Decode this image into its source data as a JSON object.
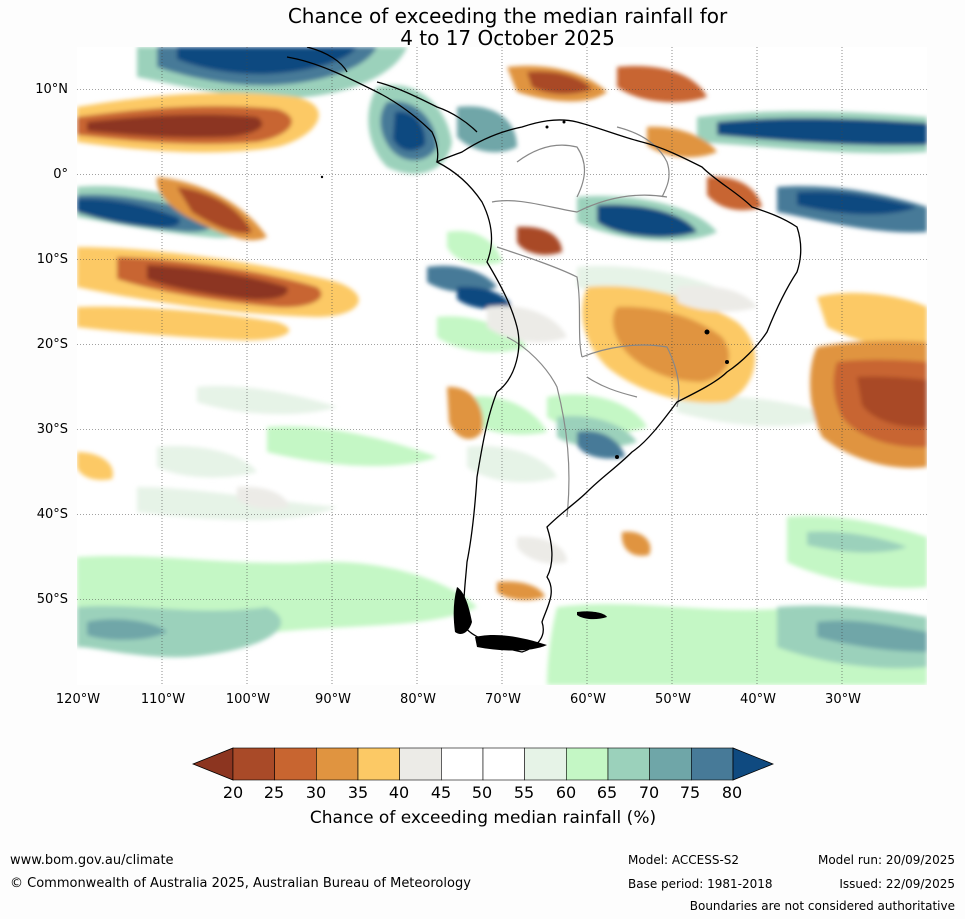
{
  "title": {
    "line1": "Chance of exceeding the median rainfall for",
    "line2": "4 to 17 October 2025"
  },
  "map": {
    "lat_labels": [
      "10°N",
      "0°",
      "10°S",
      "20°S",
      "30°S",
      "40°S",
      "50°S"
    ],
    "lon_labels": [
      "120°W",
      "110°W",
      "100°W",
      "90°W",
      "80°W",
      "70°W",
      "60°W",
      "50°W",
      "40°W",
      "30°W"
    ],
    "extent": {
      "lon_min": -120,
      "lon_max": -20,
      "lat_min": -60,
      "lat_max": 15
    }
  },
  "colorbar": {
    "ticks": [
      "20",
      "25",
      "30",
      "35",
      "40",
      "45",
      "50",
      "55",
      "60",
      "65",
      "70",
      "75",
      "80"
    ],
    "colors": [
      "#8c3520",
      "#a94a28",
      "#c86530",
      "#e09440",
      "#fcc965",
      "#ecebe7",
      "#ffffff",
      "#ffffff",
      "#e6f3e7",
      "#c4f7c5",
      "#9bd1bb",
      "#6fa6a8",
      "#477a98",
      "#0f4a80"
    ],
    "label": "Chance of exceeding median rainfall (%)"
  },
  "footer": {
    "website": "www.bom.gov.au/climate",
    "copyright": "© Commonwealth of Australia 2025, Australian Bureau of Meteorology",
    "model": "Model: ACCESS-S2",
    "base_period": "Base period: 1981-2018",
    "model_run": "Model run: 20/09/2025",
    "issued": "Issued: 22/09/2025",
    "disclaimer": "Boundaries are not considered authoritative"
  }
}
